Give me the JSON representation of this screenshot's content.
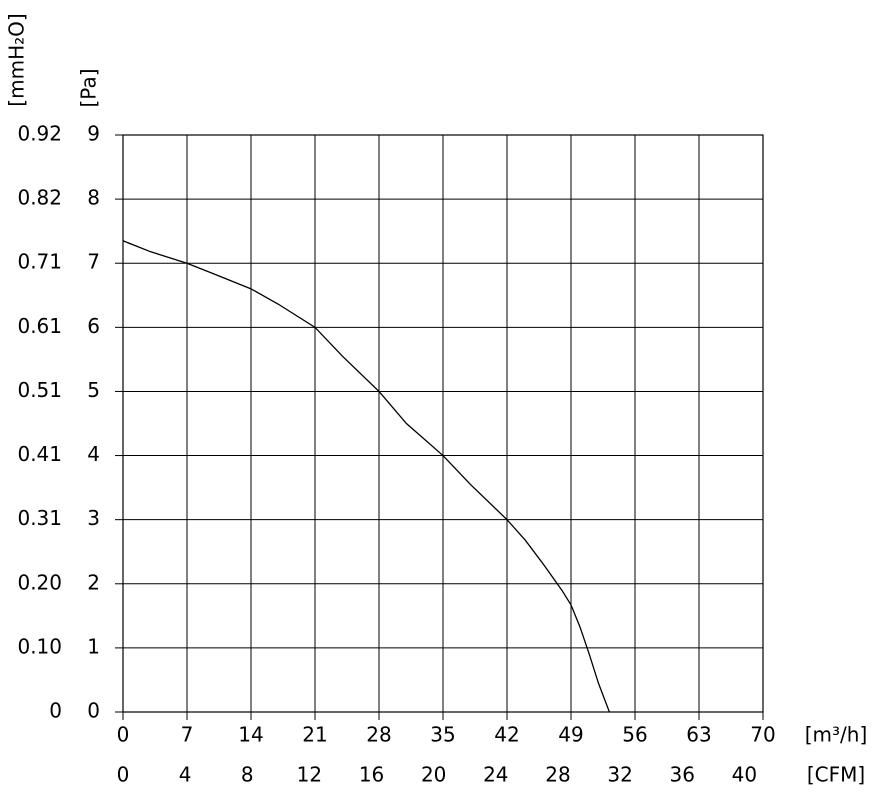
{
  "chart_data": {
    "type": "line",
    "x": [
      0,
      3,
      7,
      10,
      14,
      17,
      21,
      24,
      28,
      31,
      35,
      38,
      42,
      44,
      46,
      48,
      49,
      50,
      51,
      52,
      53.2
    ],
    "values": [
      7.35,
      7.18,
      7.0,
      6.83,
      6.6,
      6.36,
      6.0,
      5.55,
      5.0,
      4.5,
      4.0,
      3.55,
      3.0,
      2.68,
      2.3,
      1.9,
      1.67,
      1.32,
      0.9,
      0.45,
      0
    ],
    "color": "#000000",
    "xlim": [
      0,
      70
    ],
    "xticks": [
      0,
      7,
      14,
      21,
      28,
      35,
      42,
      49,
      56,
      63,
      70
    ],
    "xlabel": "[m³/h]",
    "x2lim": [
      0,
      41.2
    ],
    "x2ticks": [
      0,
      4,
      8,
      12,
      16,
      20,
      24,
      28,
      32,
      36,
      40
    ],
    "x2label": "[CFM]",
    "ylim": [
      0,
      9
    ],
    "yticks": [
      0,
      1,
      2,
      3,
      4,
      5,
      6,
      7,
      8,
      9
    ],
    "ylabel": "[Pa]",
    "y2lim": [
      0,
      0.918
    ],
    "y2label": "[mmH₂O]",
    "y2ticks": [
      0,
      {
        "value": 0.102,
        "label": "0.10"
      },
      {
        "value": 0.204,
        "label": "0.20"
      },
      {
        "value": 0.306,
        "label": "0.31"
      },
      {
        "value": 0.408,
        "label": "0.41"
      },
      {
        "value": 0.51,
        "label": "0.51"
      },
      {
        "value": 0.612,
        "label": "0.61"
      },
      {
        "value": 0.714,
        "label": "0.71"
      },
      {
        "value": 0.816,
        "label": "0.82"
      },
      {
        "value": 0.918,
        "label": "0.92"
      }
    ],
    "grid": true
  }
}
